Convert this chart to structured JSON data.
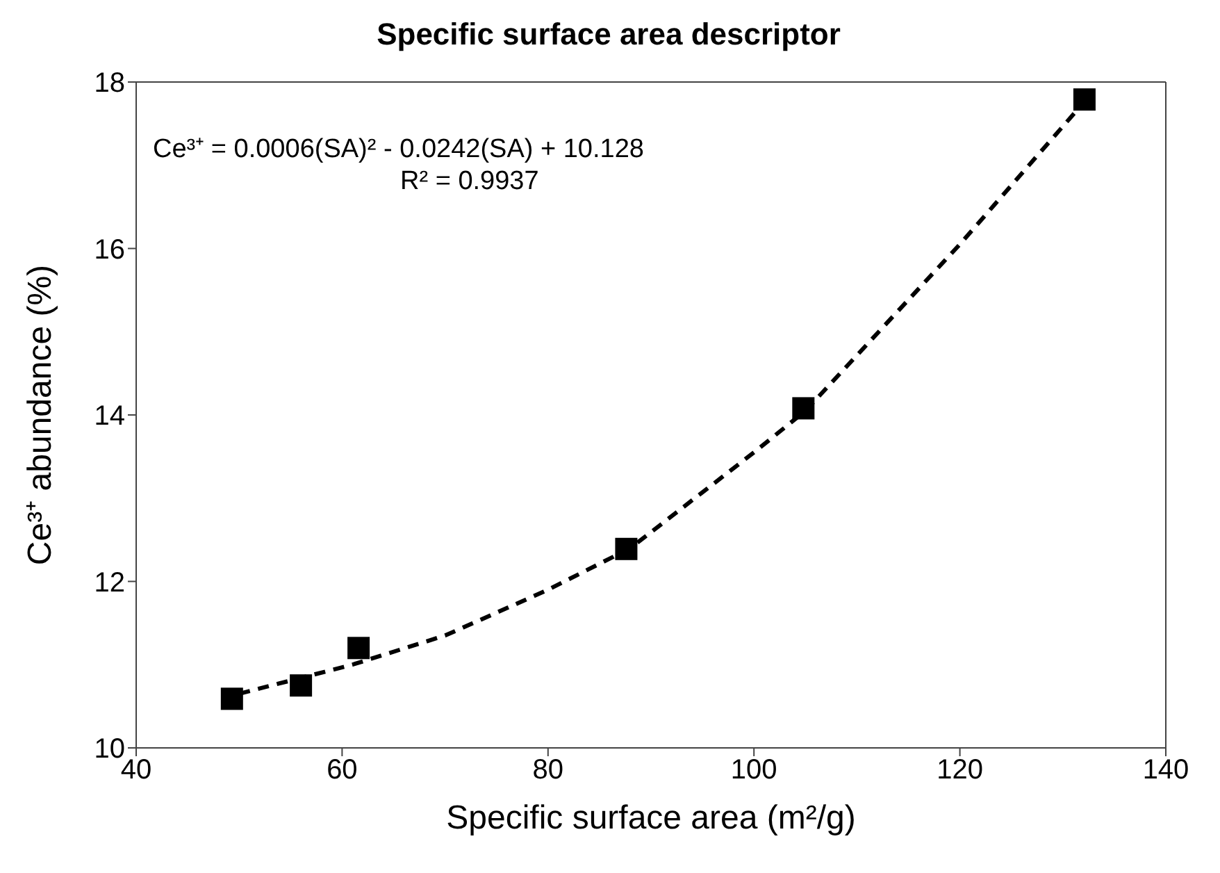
{
  "chart_data": {
    "type": "scatter",
    "title": "Specific surface area descriptor",
    "xlabel": "Specific surface area (m²/g)",
    "ylabel": "Ce³⁺ abundance (%)",
    "annotations": [
      "Ce³⁺ = 0.0006(SA)² - 0.0242(SA) + 10.128",
      "R² = 0.9937"
    ],
    "xlim": [
      40,
      140
    ],
    "xticks": [
      40,
      60,
      80,
      100,
      120,
      140
    ],
    "ylim": [
      10,
      18
    ],
    "yticks": [
      10,
      12,
      14,
      16,
      18
    ],
    "grid": false,
    "legend": false,
    "series": [
      {
        "color": "#000000",
        "marker": "square",
        "x": [
          49.3,
          56.0,
          61.6,
          87.6,
          104.8,
          132.1
        ],
        "values": [
          10.59,
          10.75,
          11.2,
          12.39,
          14.08,
          17.79
        ]
      },
      {
        "type": "line",
        "color": "#000000",
        "marker": "none",
        "line_style": "dashed",
        "x": [
          50,
          61,
          70,
          80,
          88,
          100,
          105,
          120,
          132
        ],
        "values": [
          10.65,
          11.0,
          11.35,
          11.9,
          12.4,
          13.55,
          14.05,
          16.05,
          17.75
        ]
      }
    ]
  }
}
